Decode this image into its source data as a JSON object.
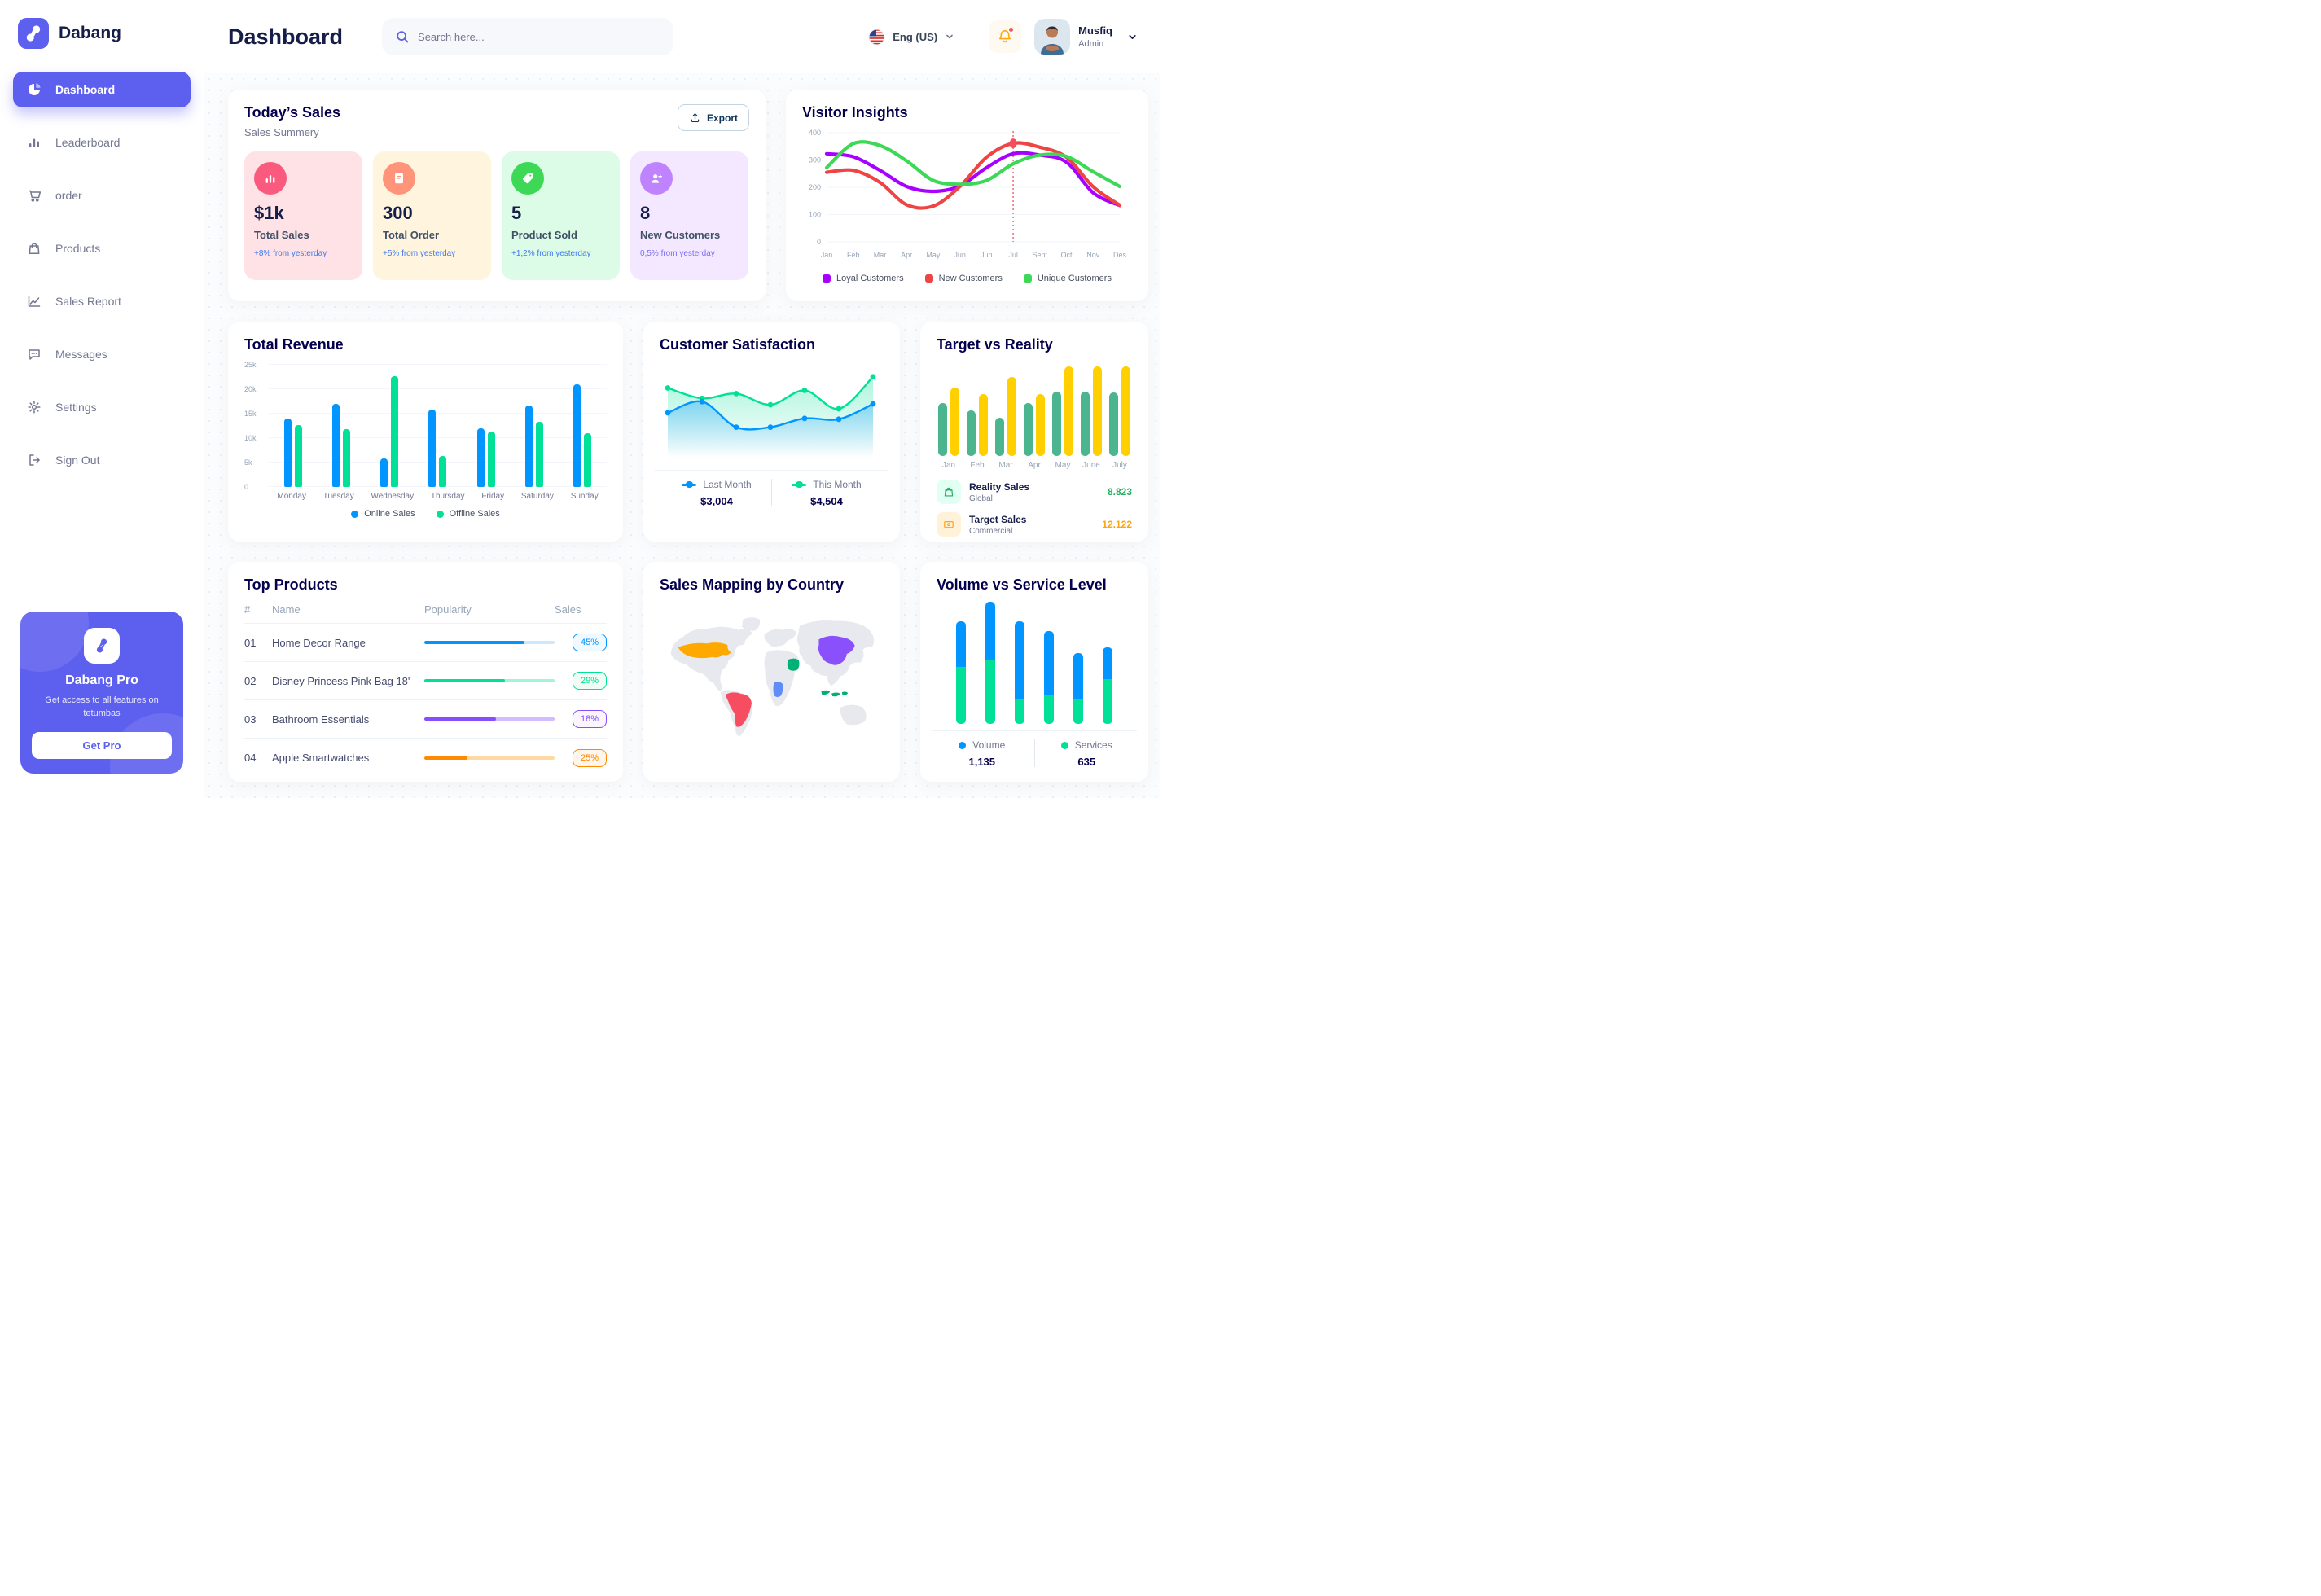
{
  "app": {
    "name": "Dabang",
    "accent_color": "#5D5FEF"
  },
  "header": {
    "title": "Dashboard",
    "search": {
      "placeholder": "Search here..."
    },
    "language": {
      "label": "Eng (US)"
    },
    "notifications": {
      "unread_dot": true
    },
    "user": {
      "name": "Musfiq",
      "role": "Admin"
    }
  },
  "sidebar": {
    "items": [
      {
        "id": "dashboard",
        "label": "Dashboard",
        "icon": "pie",
        "active": true
      },
      {
        "id": "leaderboard",
        "label": "Leaderboard",
        "icon": "bars",
        "active": false
      },
      {
        "id": "order",
        "label": "order",
        "icon": "cart",
        "active": false
      },
      {
        "id": "products",
        "label": "Products",
        "icon": "bag",
        "active": false
      },
      {
        "id": "sales-report",
        "label": "Sales Report",
        "icon": "chart",
        "active": false
      },
      {
        "id": "messages",
        "label": "Messages",
        "icon": "chat",
        "active": false
      },
      {
        "id": "settings",
        "label": "Settings",
        "icon": "gear",
        "active": false
      },
      {
        "id": "sign-out",
        "label": "Sign Out",
        "icon": "signout",
        "active": false
      }
    ],
    "pro": {
      "title": "Dabang Pro",
      "desc": "Get access to all features on tetumbas",
      "cta": "Get Pro"
    }
  },
  "todays_sales": {
    "title": "Today’s Sales",
    "subtitle": "Sales Summery",
    "export_label": "Export",
    "stats": [
      {
        "value": "$1k",
        "label": "Total Sales",
        "delta": "+8% from yesterday",
        "bg": "#FFE2E5",
        "icon_bg": "#FA5A7D",
        "icon": "chart-bar",
        "delta_color": "#4079ED"
      },
      {
        "value": "300",
        "label": "Total Order",
        "delta": "+5% from yesterday",
        "bg": "#FFF4DE",
        "icon_bg": "#FF947A",
        "icon": "receipt",
        "delta_color": "#4079ED"
      },
      {
        "value": "5",
        "label": "Product Sold",
        "delta": "+1,2% from yesterday",
        "bg": "#DCFCE7",
        "icon_bg": "#3CD856",
        "icon": "tag",
        "delta_color": "#4079ED"
      },
      {
        "value": "8",
        "label": "New Customers",
        "delta": "0,5% from yesterday",
        "bg": "#F3E8FF",
        "icon_bg": "#BF83FF",
        "icon": "user-plus",
        "delta_color": "#7A6FF0"
      }
    ]
  },
  "visitor_insights": {
    "title": "Visitor Insights",
    "type": "line",
    "x_labels": [
      "Jan",
      "Feb",
      "Mar",
      "Apr",
      "May",
      "Jun",
      "Jun",
      "Jul",
      "Sept",
      "Oct",
      "Nov",
      "Des"
    ],
    "yticks": [
      0,
      100,
      200,
      300,
      400
    ],
    "ymax": 400,
    "highlight_index": 7,
    "highlight_color": "#F64E60",
    "series": [
      {
        "name": "Loyal Customers",
        "color": "#A700FF",
        "values": [
          323,
          312,
          262,
          203,
          185,
          205,
          272,
          323,
          318,
          292,
          180,
          133
        ]
      },
      {
        "name": "New Customers",
        "color": "#EF4444",
        "values": [
          255,
          262,
          218,
          136,
          131,
          203,
          310,
          361,
          347,
          310,
          202,
          134
        ]
      },
      {
        "name": "Unique Customers",
        "color": "#3CD856",
        "values": [
          272,
          360,
          353,
          297,
          225,
          211,
          225,
          286,
          318,
          313,
          257,
          203
        ]
      }
    ]
  },
  "total_revenue": {
    "title": "Total Revenue",
    "type": "bar",
    "categories": [
      "Monday",
      "Tuesday",
      "Wednesday",
      "Thursday",
      "Friday",
      "Saturday",
      "Sunday"
    ],
    "yticks": [
      "0",
      "5k",
      "10k",
      "15k",
      "20k",
      "25k"
    ],
    "ymax": 25,
    "series": [
      {
        "name": "Online Sales",
        "color": "#0095FF",
        "values": [
          14,
          17,
          5.8,
          15.8,
          12,
          16.7,
          21
        ]
      },
      {
        "name": "Offline Sales",
        "color": "#00E096",
        "values": [
          12.7,
          11.9,
          22.6,
          6.4,
          11.3,
          13.4,
          11
        ]
      }
    ]
  },
  "customer_satisfaction": {
    "title": "Customer Satisfaction",
    "type": "area",
    "ymax": 110,
    "series": [
      {
        "name": "This Month",
        "value": "$4,504",
        "color": "#00E096",
        "values": [
          83,
          70,
          76,
          62,
          80,
          57,
          97
        ]
      },
      {
        "name": "Last Month",
        "value": "$3,004",
        "color": "#0095FF",
        "values": [
          52,
          66,
          34,
          34,
          45,
          44,
          63
        ]
      }
    ],
    "legend_order": [
      "Last Month",
      "This Month"
    ]
  },
  "target_vs_reality": {
    "title": "Target vs Reality",
    "type": "bar",
    "categories": [
      "Jan",
      "Feb",
      "Mar",
      "Apr",
      "May",
      "June",
      "July"
    ],
    "series": [
      {
        "name": "Reality Sales",
        "color": "#4AB58E",
        "values": [
          59,
          51,
          43,
          59,
          72,
          72,
          71
        ]
      },
      {
        "name": "Target Sales",
        "color": "#FFCF00",
        "values": [
          76,
          69,
          88,
          69,
          100,
          100,
          100
        ]
      }
    ],
    "legend": [
      {
        "title": "Reality Sales",
        "subtitle": "Global",
        "value": "8.823",
        "value_color": "#27AE60",
        "icon_bg": "#E2FFF3",
        "icon": "bag"
      },
      {
        "title": "Target Sales",
        "subtitle": "Commercial",
        "value": "12.122",
        "value_color": "#FFA412",
        "icon_bg": "#FFF2D9",
        "icon": "ticket"
      }
    ]
  },
  "top_products": {
    "title": "Top Products",
    "columns": [
      "#",
      "Name",
      "Popularity",
      "Sales"
    ],
    "rows": [
      {
        "num": "01",
        "name": "Home Decor Range",
        "popularity": 77,
        "sales": "45%",
        "color": "#0095FF",
        "track": "#CDE7FF",
        "badge_bg": "#F0F9FF"
      },
      {
        "num": "02",
        "name": "Disney Princess Pink Bag 18'",
        "popularity": 62,
        "sales": "29%",
        "color": "#00E096",
        "track": "#9FF5D5",
        "badge_bg": "#F0FDF4"
      },
      {
        "num": "03",
        "name": "Bathroom Essentials",
        "popularity": 55,
        "sales": "18%",
        "color": "#884DFF",
        "track": "#D4BBFF",
        "badge_bg": "#FAF5FF"
      },
      {
        "num": "04",
        "name": "Apple Smartwatches",
        "popularity": 33,
        "sales": "25%",
        "color": "#FF8900",
        "track": "#FFD9A3",
        "badge_bg": "#FFF6EB"
      }
    ]
  },
  "sales_map": {
    "title": "Sales Mapping by Country",
    "base_color": "#E8E9EE",
    "countries": [
      {
        "key": "us",
        "name": "United States",
        "color": "#FFA800"
      },
      {
        "key": "brazil",
        "name": "Brazil",
        "color": "#F64E60"
      },
      {
        "key": "saudi",
        "name": "Saudi Arabia",
        "color": "#00B074"
      },
      {
        "key": "congo",
        "name": "DR Congo",
        "color": "#5E8DF7"
      },
      {
        "key": "china",
        "name": "China",
        "color": "#8950FC"
      },
      {
        "key": "indonesia",
        "name": "Indonesia",
        "color": "#00B074"
      }
    ]
  },
  "volume_service": {
    "title": "Volume vs Service Level",
    "type": "stacked-bar",
    "series": [
      {
        "name": "Volume",
        "value": "1,135",
        "color": "#0095FF"
      },
      {
        "name": "Services",
        "value": "635",
        "color": "#00E096"
      }
    ],
    "bars": [
      {
        "volume": 37,
        "services": 47
      },
      {
        "volume": 47,
        "services": 53
      },
      {
        "volume": 63,
        "services": 21
      },
      {
        "volume": 52,
        "services": 24
      },
      {
        "volume": 37,
        "services": 21
      },
      {
        "volume": 26,
        "services": 37
      }
    ]
  }
}
